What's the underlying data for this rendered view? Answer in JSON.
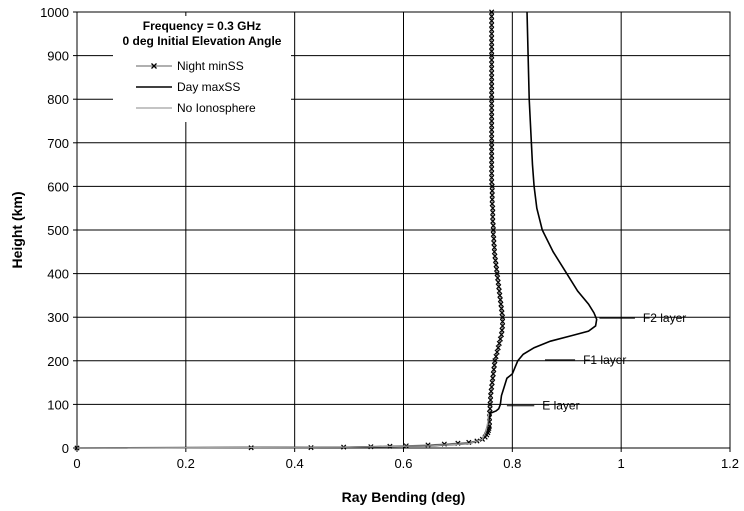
{
  "chart_data": {
    "type": "line",
    "title": "Frequency = 0.3 GHz",
    "subtitle": "0 deg Initial Elevation Angle",
    "xlabel": "Ray Bending (deg)",
    "ylabel": "Height (km)",
    "xlim": [
      0,
      1.2
    ],
    "ylim": [
      0,
      1000
    ],
    "xticks": [
      "0",
      "0.2",
      "0.4",
      "0.6",
      "0.8",
      "1",
      "1.2"
    ],
    "yticks": [
      "0",
      "100",
      "200",
      "300",
      "400",
      "500",
      "600",
      "700",
      "800",
      "900",
      "1000"
    ],
    "grid": true,
    "legend_placement": "top-left",
    "series": [
      {
        "name": "Night minSS",
        "style": "gray line with x markers",
        "color": "#808080",
        "marker_color": "#000000",
        "points": [
          [
            0,
            0
          ],
          [
            0.32,
            0.5
          ],
          [
            0.43,
            1
          ],
          [
            0.49,
            2
          ],
          [
            0.54,
            3
          ],
          [
            0.575,
            4
          ],
          [
            0.605,
            5
          ],
          [
            0.645,
            7
          ],
          [
            0.675,
            9
          ],
          [
            0.7,
            11
          ],
          [
            0.72,
            13
          ],
          [
            0.735,
            16
          ],
          [
            0.745,
            20
          ],
          [
            0.75,
            25
          ],
          [
            0.753,
            30
          ],
          [
            0.755,
            35
          ],
          [
            0.756,
            40
          ],
          [
            0.757,
            45
          ],
          [
            0.758,
            50
          ],
          [
            0.758,
            60
          ],
          [
            0.758,
            70
          ],
          [
            0.758,
            80
          ],
          [
            0.759,
            90
          ],
          [
            0.759,
            100
          ],
          [
            0.76,
            110
          ],
          [
            0.76,
            120
          ],
          [
            0.761,
            130
          ],
          [
            0.762,
            140
          ],
          [
            0.763,
            150
          ],
          [
            0.764,
            160
          ],
          [
            0.765,
            170
          ],
          [
            0.766,
            180
          ],
          [
            0.767,
            190
          ],
          [
            0.768,
            200
          ],
          [
            0.77,
            210
          ],
          [
            0.772,
            220
          ],
          [
            0.774,
            230
          ],
          [
            0.776,
            240
          ],
          [
            0.778,
            250
          ],
          [
            0.78,
            260
          ],
          [
            0.781,
            270
          ],
          [
            0.782,
            280
          ],
          [
            0.782,
            290
          ],
          [
            0.782,
            300
          ],
          [
            0.781,
            310
          ],
          [
            0.78,
            320
          ],
          [
            0.779,
            330
          ],
          [
            0.778,
            340
          ],
          [
            0.777,
            350
          ],
          [
            0.776,
            360
          ],
          [
            0.775,
            370
          ],
          [
            0.774,
            380
          ],
          [
            0.773,
            390
          ],
          [
            0.772,
            400
          ],
          [
            0.771,
            410
          ],
          [
            0.77,
            420
          ],
          [
            0.769,
            430
          ],
          [
            0.768,
            440
          ],
          [
            0.767,
            450
          ],
          [
            0.767,
            460
          ],
          [
            0.766,
            470
          ],
          [
            0.766,
            480
          ],
          [
            0.765,
            490
          ],
          [
            0.765,
            500
          ],
          [
            0.765,
            510
          ],
          [
            0.764,
            520
          ],
          [
            0.764,
            530
          ],
          [
            0.764,
            540
          ],
          [
            0.764,
            550
          ],
          [
            0.763,
            560
          ],
          [
            0.763,
            570
          ],
          [
            0.763,
            580
          ],
          [
            0.763,
            590
          ],
          [
            0.763,
            600
          ],
          [
            0.762,
            610
          ],
          [
            0.762,
            620
          ],
          [
            0.762,
            630
          ],
          [
            0.762,
            640
          ],
          [
            0.762,
            650
          ],
          [
            0.762,
            660
          ],
          [
            0.762,
            670
          ],
          [
            0.762,
            680
          ],
          [
            0.762,
            690
          ],
          [
            0.762,
            700
          ],
          [
            0.762,
            710
          ],
          [
            0.762,
            720
          ],
          [
            0.762,
            730
          ],
          [
            0.762,
            740
          ],
          [
            0.762,
            750
          ],
          [
            0.762,
            760
          ],
          [
            0.762,
            770
          ],
          [
            0.762,
            780
          ],
          [
            0.762,
            790
          ],
          [
            0.762,
            800
          ],
          [
            0.762,
            810
          ],
          [
            0.762,
            820
          ],
          [
            0.762,
            830
          ],
          [
            0.762,
            840
          ],
          [
            0.762,
            850
          ],
          [
            0.762,
            860
          ],
          [
            0.762,
            870
          ],
          [
            0.762,
            880
          ],
          [
            0.762,
            890
          ],
          [
            0.762,
            900
          ],
          [
            0.762,
            910
          ],
          [
            0.762,
            920
          ],
          [
            0.762,
            930
          ],
          [
            0.762,
            940
          ],
          [
            0.762,
            950
          ],
          [
            0.762,
            960
          ],
          [
            0.762,
            970
          ],
          [
            0.762,
            980
          ],
          [
            0.762,
            990
          ],
          [
            0.762,
            1000
          ]
        ]
      },
      {
        "name": "Day maxSS",
        "style": "black line",
        "color": "#000000",
        "points": [
          [
            0,
            0
          ],
          [
            0.5,
            2
          ],
          [
            0.65,
            5
          ],
          [
            0.72,
            10
          ],
          [
            0.745,
            20
          ],
          [
            0.752,
            40
          ],
          [
            0.756,
            60
          ],
          [
            0.76,
            80
          ],
          [
            0.77,
            85
          ],
          [
            0.775,
            90
          ],
          [
            0.778,
            100
          ],
          [
            0.78,
            120
          ],
          [
            0.785,
            140
          ],
          [
            0.79,
            160
          ],
          [
            0.8,
            170
          ],
          [
            0.805,
            185
          ],
          [
            0.81,
            200
          ],
          [
            0.82,
            215
          ],
          [
            0.84,
            230
          ],
          [
            0.87,
            245
          ],
          [
            0.91,
            258
          ],
          [
            0.94,
            268
          ],
          [
            0.953,
            280
          ],
          [
            0.955,
            295
          ],
          [
            0.95,
            310
          ],
          [
            0.94,
            330
          ],
          [
            0.92,
            360
          ],
          [
            0.9,
            400
          ],
          [
            0.875,
            450
          ],
          [
            0.855,
            500
          ],
          [
            0.845,
            550
          ],
          [
            0.84,
            600
          ],
          [
            0.837,
            650
          ],
          [
            0.835,
            700
          ],
          [
            0.833,
            750
          ],
          [
            0.831,
            800
          ],
          [
            0.83,
            850
          ],
          [
            0.829,
            900
          ],
          [
            0.828,
            950
          ],
          [
            0.827,
            1000
          ]
        ]
      },
      {
        "name": "No Ionosphere",
        "style": "gray line",
        "color": "#a0a0a0",
        "points": [
          [
            0,
            0
          ],
          [
            0.5,
            2
          ],
          [
            0.65,
            5
          ],
          [
            0.72,
            10
          ],
          [
            0.745,
            20
          ],
          [
            0.752,
            40
          ],
          [
            0.755,
            60
          ],
          [
            0.756,
            80
          ]
        ]
      }
    ],
    "annotations": [
      {
        "text": "F2 layer",
        "x": 0.96,
        "y": 298,
        "label_x": 1.04
      },
      {
        "text": "F1 layer",
        "x": 0.86,
        "y": 202,
        "label_x": 0.93
      },
      {
        "text": "E layer",
        "x": 0.79,
        "y": 97,
        "label_x": 0.855
      }
    ]
  }
}
